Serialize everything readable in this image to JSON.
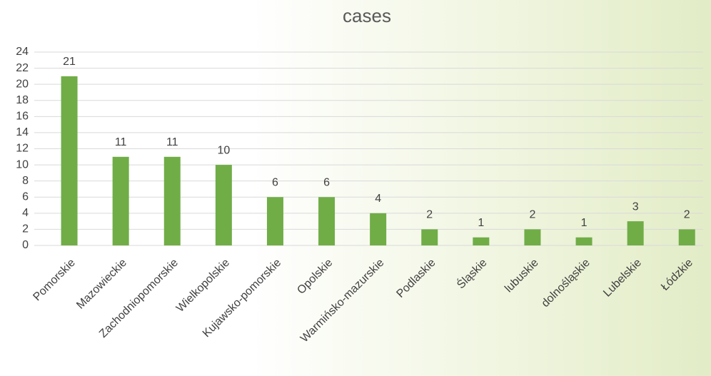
{
  "chart_data": {
    "type": "bar",
    "title": "cases",
    "categories": [
      "Pomorskie",
      "Mazowieckie",
      "Zachodniopomorskie",
      "Wielkopolskie",
      "Kujawsko-pomorskie",
      "Opolskie",
      "Warmińsko-mazurskie",
      "Podlaskie",
      "Śląskie",
      "lubuskie",
      "dolnośląskie",
      "Lubelskie",
      "Łódzkie"
    ],
    "values": [
      21,
      11,
      11,
      10,
      6,
      6,
      4,
      2,
      1,
      2,
      1,
      3,
      2
    ],
    "color": "#70ad47",
    "ylim": [
      0,
      24
    ],
    "yticks": [
      0,
      2,
      4,
      6,
      8,
      10,
      12,
      14,
      16,
      18,
      20,
      22,
      24
    ],
    "grid": true
  }
}
